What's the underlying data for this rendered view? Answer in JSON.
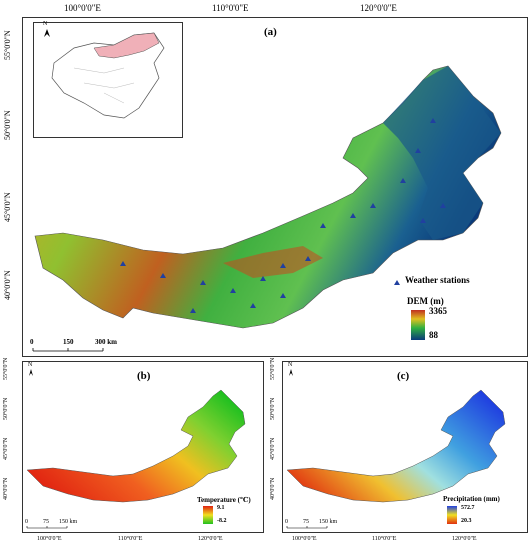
{
  "panel_a": {
    "label": "(a)",
    "top_ticks": [
      "100°0'0\"E",
      "110°0'0\"E",
      "120°0'0\"E"
    ],
    "left_ticks": [
      "55°0'0\"N",
      "50°0'0\"N",
      "45°0'0\"N",
      "40°0'0\"N"
    ],
    "north_label": "N",
    "scale": {
      "labels": [
        "0",
        "150",
        "300 km"
      ]
    },
    "stations_label": "Weather stations",
    "dem": {
      "title": "DEM (m)",
      "max": "3365",
      "min": "88"
    }
  },
  "panel_b": {
    "label": "(b)",
    "left_ticks": [
      "55°0'0\"N",
      "50°0'0\"N",
      "45°0'0\"N",
      "40°0'0\"N"
    ],
    "bottom_ticks": [
      "100°0'0\"E",
      "110°0'0\"E",
      "120°0'0\"E"
    ],
    "north_label": "N",
    "scale": {
      "labels": [
        "0",
        "75",
        "150 km"
      ]
    },
    "legend": {
      "title": "Temperature (℃)",
      "max": "9.1",
      "min": "-8.2"
    }
  },
  "panel_c": {
    "label": "(c)",
    "left_ticks": [
      "55°0'0\"N",
      "50°0'0\"N",
      "45°0'0\"N",
      "40°0'0\"N"
    ],
    "bottom_ticks": [
      "100°0'0\"E",
      "110°0'0\"E",
      "120°0'0\"E"
    ],
    "north_label": "N",
    "scale": {
      "labels": [
        "0",
        "75",
        "150 km"
      ]
    },
    "legend": {
      "title": "Precipitation (mm)",
      "max": "572.7",
      "min": "20.3"
    }
  },
  "colors": {
    "dem_high": "#c03020",
    "dem_mid": "#30b040",
    "dem_low": "#0a3a7a",
    "temp_high": "#e02010",
    "temp_low": "#20c020",
    "precip_high": "#2040e0",
    "precip_low": "#e03010",
    "inset_highlight": "#f0b0b8",
    "station": "#2040a0"
  }
}
